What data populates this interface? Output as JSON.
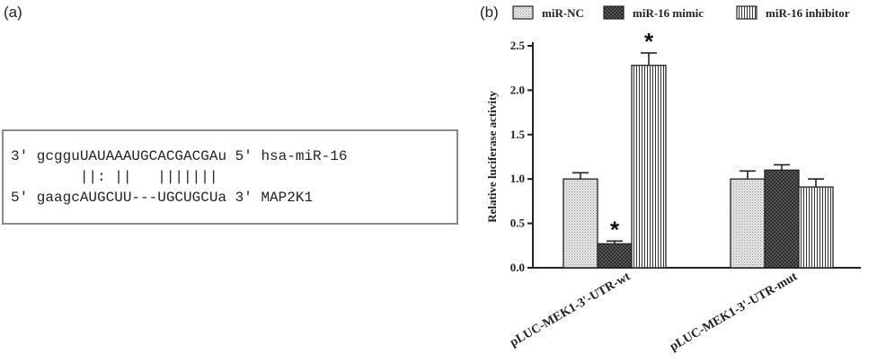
{
  "panel_a": {
    "label": "(a)",
    "lines": [
      "3' gcgguUAUAAAUGCACGACGAu 5' hsa-miR-16",
      "        ||: ||   |||||||",
      "5' gaagcAUGCUU---UGCUGCUa 3' MAP2K1"
    ]
  },
  "panel_b": {
    "label": "(b)"
  },
  "chart_data": {
    "type": "bar",
    "title": "",
    "xlabel": "",
    "ylabel": "Relative luciferase activity",
    "ylim": [
      0,
      2.5
    ],
    "yticks": [
      0.0,
      0.5,
      1.0,
      1.5,
      2.0,
      2.5
    ],
    "ytick_labels": [
      "0.0",
      "0.5",
      "1.0",
      "1.5",
      "2.0",
      "2.5"
    ],
    "categories": [
      "pLUC-MEK1-3'-UTR-wt",
      "pLUC-MEK1-3'-UTR-mut"
    ],
    "series": [
      {
        "name": "miR-NC",
        "values": [
          1.0,
          1.0
        ],
        "errors": [
          0.07,
          0.09
        ],
        "pattern": "dots"
      },
      {
        "name": "miR-16 mimic",
        "values": [
          0.27,
          1.1
        ],
        "errors": [
          0.03,
          0.06
        ],
        "pattern": "crosshatch"
      },
      {
        "name": "miR-16 inhibitor",
        "values": [
          2.28,
          0.91
        ],
        "errors": [
          0.14,
          0.09
        ],
        "pattern": "vertical-stripes"
      }
    ],
    "annotations": [
      {
        "text": "*",
        "category": 0,
        "series": 1
      },
      {
        "text": "*",
        "category": 0,
        "series": 2
      }
    ],
    "legend_position": "top",
    "grid": false
  }
}
